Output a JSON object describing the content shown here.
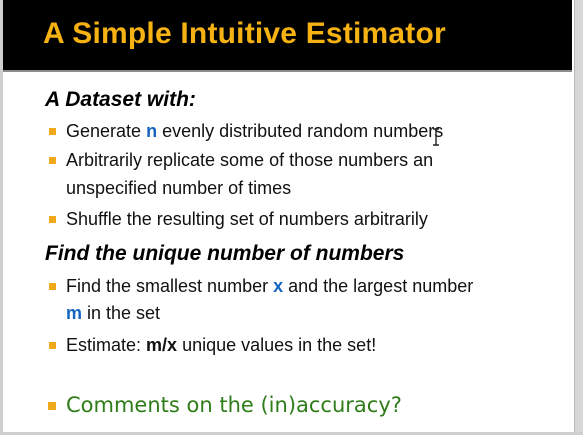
{
  "slide": {
    "title": "A Simple Intuitive Estimator",
    "section1": {
      "heading_pre": "A Dataset with",
      "heading_post": ":",
      "bullets": [
        {
          "pre": "Generate ",
          "var": "n",
          "post": " evenly distributed random numbers"
        },
        {
          "line1": "Arbitrarily replicate some of those numbers an",
          "line2": "unspecified number of times"
        },
        {
          "text": "Shuffle the resulting set of numbers arbitrarily"
        }
      ]
    },
    "section2": {
      "heading": "Find the unique number of numbers",
      "bullets": [
        {
          "pre": "Find the smallest number ",
          "var1": "x",
          "mid": " and the largest number",
          "var2": "m",
          "post": " in the set"
        },
        {
          "pre": "Estimate: ",
          "formula": "m/x",
          "post": " unique values in the set!"
        }
      ]
    },
    "comment": "Comments on the (in)accuracy?",
    "colors": {
      "title_bg": "#000000",
      "title_text": "#f6b213",
      "bullet": "#f0a91a",
      "variable": "#1565c0",
      "comment": "#2e7d18"
    },
    "icons": [
      "text-cursor-icon"
    ]
  }
}
